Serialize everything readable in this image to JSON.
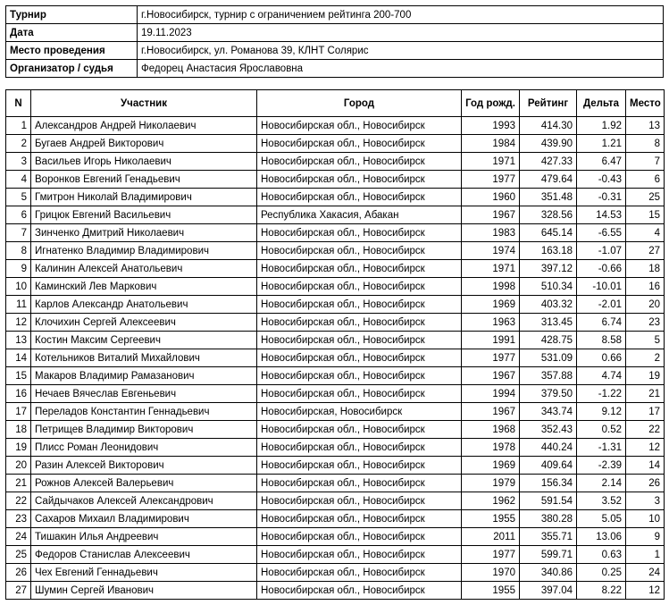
{
  "info": [
    {
      "label": "Турнир",
      "value": "г.Новосибирск, турнир с ограничением рейтинга 200-700"
    },
    {
      "label": "Дата",
      "value": "19.11.2023"
    },
    {
      "label": "Место проведения",
      "value": "г.Новосибирск, ул. Романова 39, КЛНТ Солярис"
    },
    {
      "label": "Организатор / судья",
      "value": "Федорец Анастасия Ярославовна"
    }
  ],
  "headers": {
    "n": "N",
    "player": "Участник",
    "city": "Город",
    "year": "Год рожд.",
    "rating": "Рейтинг",
    "delta": "Дельта",
    "place": "Место"
  },
  "rows": [
    [
      "1",
      "Александров Андрей Николаевич",
      "Новосибирская обл., Новосибирск",
      "1993",
      "414.30",
      "1.92",
      "13"
    ],
    [
      "2",
      "Бугаев Андрей Викторович",
      "Новосибирская обл., Новосибирск",
      "1984",
      "439.90",
      "1.21",
      "8"
    ],
    [
      "3",
      "Васильев Игорь Николаевич",
      "Новосибирская обл., Новосибирск",
      "1971",
      "427.33",
      "6.47",
      "7"
    ],
    [
      "4",
      "Воронков Евгений Генадьевич",
      "Новосибирская обл., Новосибирск",
      "1977",
      "479.64",
      "-0.43",
      "6"
    ],
    [
      "5",
      "Гмитрон Николай Владимирович",
      "Новосибирская обл., Новосибирск",
      "1960",
      "351.48",
      "-0.31",
      "25"
    ],
    [
      "6",
      "Грицюк Евгений Васильевич",
      "Республика Хакасия, Абакан",
      "1967",
      "328.56",
      "14.53",
      "15"
    ],
    [
      "7",
      "Зинченко Дмитрий Николаевич",
      "Новосибирская обл., Новосибирск",
      "1983",
      "645.14",
      "-6.55",
      "4"
    ],
    [
      "8",
      "Игнатенко Владимир Владимирович",
      "Новосибирская обл., Новосибирск",
      "1974",
      "163.18",
      "-1.07",
      "27"
    ],
    [
      "9",
      "Калинин Алексей Анатольевич",
      "Новосибирская обл., Новосибирск",
      "1971",
      "397.12",
      "-0.66",
      "18"
    ],
    [
      "10",
      "Каминский Лев Маркович",
      "Новосибирская обл., Новосибирск",
      "1998",
      "510.34",
      "-10.01",
      "16"
    ],
    [
      "11",
      "Карлов Александр Анатольевич",
      "Новосибирская обл., Новосибирск",
      "1969",
      "403.32",
      "-2.01",
      "20"
    ],
    [
      "12",
      "Клочихин Сергей Алексеевич",
      "Новосибирская обл., Новосибирск",
      "1963",
      "313.45",
      "6.74",
      "23"
    ],
    [
      "13",
      "Костин Максим Сергеевич",
      "Новосибирская обл., Новосибирск",
      "1991",
      "428.75",
      "8.58",
      "5"
    ],
    [
      "14",
      "Котельников Виталий Михайлович",
      "Новосибирская обл., Новосибирск",
      "1977",
      "531.09",
      "0.66",
      "2"
    ],
    [
      "15",
      "Макаров Владимир Рамазанович",
      "Новосибирская обл., Новосибирск",
      "1967",
      "357.88",
      "4.74",
      "19"
    ],
    [
      "16",
      "Нечаев Вячеслав Евгеньевич",
      "Новосибирская обл., Новосибирск",
      "1994",
      "379.50",
      "-1.22",
      "21"
    ],
    [
      "17",
      "Переладов Константин Геннадьевич",
      "Новосибирская, Новосибирск",
      "1967",
      "343.74",
      "9.12",
      "17"
    ],
    [
      "18",
      "Петрищев Владимир Викторович",
      "Новосибирская обл., Новосибирск",
      "1968",
      "352.43",
      "0.52",
      "22"
    ],
    [
      "19",
      "Плисс Роман Леонидович",
      "Новосибирская обл., Новосибирск",
      "1978",
      "440.24",
      "-1.31",
      "12"
    ],
    [
      "20",
      "Разин Алексей Викторович",
      "Новосибирская обл., Новосибирск",
      "1969",
      "409.64",
      "-2.39",
      "14"
    ],
    [
      "21",
      "Рожнов Алексей Валерьевич",
      "Новосибирская обл., Новосибирск",
      "1979",
      "156.34",
      "2.14",
      "26"
    ],
    [
      "22",
      "Сайдычаков Алексей Александрович",
      "Новосибирская обл., Новосибирск",
      "1962",
      "591.54",
      "3.52",
      "3"
    ],
    [
      "23",
      "Сахаров Михаил Владимирович",
      "Новосибирская обл., Новосибирск",
      "1955",
      "380.28",
      "5.05",
      "10"
    ],
    [
      "24",
      "Тишакин Илья Андреевич",
      "Новосибирская обл., Новосибирск",
      "2011",
      "355.71",
      "13.06",
      "9"
    ],
    [
      "25",
      "Федоров Станислав Алексеевич",
      "Новосибирская обл., Новосибирск",
      "1977",
      "599.71",
      "0.63",
      "1"
    ],
    [
      "26",
      "Чех Евгений Геннадьевич",
      "Новосибирская обл., Новосибирск",
      "1970",
      "340.86",
      "0.25",
      "24"
    ],
    [
      "27",
      "Шумин Сергей Иванович",
      "Новосибирская обл., Новосибирск",
      "1955",
      "397.04",
      "8.22",
      "12"
    ]
  ]
}
